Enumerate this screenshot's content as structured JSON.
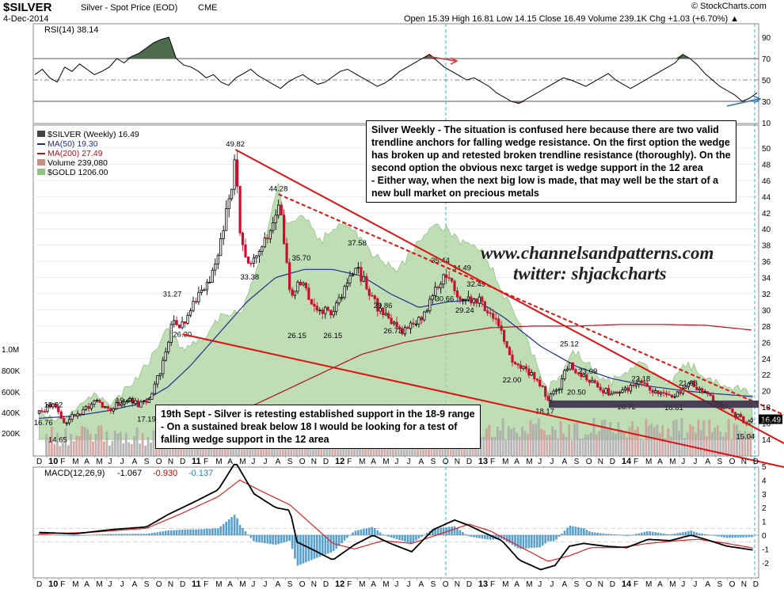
{
  "header": {
    "symbol": "$SILVER",
    "name": "Silver - Spot Price (EOD)",
    "exchange": "CME",
    "date": "4-Dec-2014",
    "credit": "© StockCharts.com",
    "ohlc": "Open 15.39  High 16.81  Low 14.15  Close 16.49  Volume 239.1K  Chg +1.03 (+6.70%) ▲"
  },
  "rsi_panel": {
    "label": "RSI(14) 38.14",
    "levels": [
      "90",
      "70",
      "50",
      "30",
      "10"
    ],
    "values": [
      55,
      60,
      52,
      48,
      62,
      58,
      65,
      60,
      55,
      58,
      62,
      70,
      66,
      72,
      75,
      80,
      85,
      88,
      90,
      70,
      64,
      62,
      58,
      52,
      55,
      48,
      45,
      52,
      56,
      60,
      54,
      50,
      46,
      42,
      48,
      52,
      55,
      50,
      46,
      48,
      53,
      58,
      60,
      56,
      52,
      48,
      44,
      47,
      52,
      58,
      62,
      66,
      70,
      74,
      68,
      62,
      58,
      54,
      50,
      52,
      48,
      44,
      38,
      34,
      30,
      28,
      32,
      36,
      40,
      44,
      48,
      52,
      50,
      47,
      44,
      48,
      52,
      56,
      50,
      46,
      42,
      46,
      50,
      54,
      58,
      62,
      66,
      74,
      70,
      64,
      56,
      50,
      44,
      40,
      36,
      30,
      33,
      38
    ]
  },
  "price_panel": {
    "legend": [
      "$SILVER (Weekly) 16.49",
      "MA(50) 19.30",
      "MA(200) 27.49",
      "Volume 239,080",
      "$GOLD 1206.00"
    ],
    "y_ticks": [
      "50",
      "48",
      "46",
      "44",
      "42",
      "40",
      "38",
      "36",
      "34",
      "32",
      "30",
      "28",
      "26",
      "24",
      "22",
      "20",
      "18",
      "16",
      "14"
    ],
    "volume_ticks": [
      "1.0M",
      "800K",
      "600K",
      "400K",
      "200K"
    ],
    "last_price": "16.49",
    "price_labels": [
      {
        "text": "18.92",
        "x": 2010.05,
        "y": 18.92
      },
      {
        "text": "16.76",
        "x": 2009.98,
        "y": 16.76
      },
      {
        "text": "14.65",
        "x": 2010.08,
        "y": 14.65
      },
      {
        "text": "19.46",
        "x": 2010.55,
        "y": 19.46
      },
      {
        "text": "17.19",
        "x": 2010.7,
        "y": 17.19
      },
      {
        "text": "31.27",
        "x": 2010.88,
        "y": 31.27
      },
      {
        "text": "26.30",
        "x": 2010.95,
        "y": 26.3
      },
      {
        "text": "49.82",
        "x": 2011.32,
        "y": 49.82
      },
      {
        "text": "33.38",
        "x": 2011.42,
        "y": 33.38
      },
      {
        "text": "44.28",
        "x": 2011.62,
        "y": 44.28
      },
      {
        "text": "35.70",
        "x": 2011.78,
        "y": 35.7
      },
      {
        "text": "26.15",
        "x": 2011.75,
        "y": 26.15
      },
      {
        "text": "26.15",
        "x": 2012.0,
        "y": 26.15
      },
      {
        "text": "37.58",
        "x": 2012.17,
        "y": 37.58
      },
      {
        "text": "29.86",
        "x": 2012.35,
        "y": 29.86
      },
      {
        "text": "26.73",
        "x": 2012.42,
        "y": 26.73
      },
      {
        "text": "35.44",
        "x": 2012.75,
        "y": 35.44
      },
      {
        "text": "34.49",
        "x": 2012.9,
        "y": 34.49
      },
      {
        "text": "30.66",
        "x": 2012.78,
        "y": 30.66
      },
      {
        "text": "32.49",
        "x": 2013.0,
        "y": 32.49
      },
      {
        "text": "29.24",
        "x": 2012.92,
        "y": 29.24
      },
      {
        "text": "22.00",
        "x": 2013.25,
        "y": 22.0
      },
      {
        "text": "25.12",
        "x": 2013.65,
        "y": 25.12
      },
      {
        "text": "23.09",
        "x": 2013.78,
        "y": 23.09
      },
      {
        "text": "20.50",
        "x": 2013.7,
        "y": 20.5
      },
      {
        "text": "18.17",
        "x": 2013.48,
        "y": 18.17
      },
      {
        "text": "22.18",
        "x": 2014.15,
        "y": 22.18
      },
      {
        "text": "18.72",
        "x": 2014.05,
        "y": 18.72
      },
      {
        "text": "21.63",
        "x": 2014.48,
        "y": 21.63
      },
      {
        "text": "18.61",
        "x": 2014.38,
        "y": 18.61
      },
      {
        "text": "15.04",
        "x": 2014.88,
        "y": 15.04
      }
    ]
  },
  "annotations": {
    "weekly_note": [
      "Silver Weekly - The situation is confused here because there are two valid",
      "trendline anchors for falling wedge resistance. On the first option the wedge",
      "has broken up and retested broken trendline resistance (thoroughly). On the",
      "second option the obvious nexc target is wedge support in the 12 area",
      "- Either way, when the next big low is made, that may well be the start of a",
      "new bull market on precious metals"
    ],
    "support_note": [
      "19th Sept - Silver is retesting established support in the 18-9 range",
      "- On a sustained break below 18 I would be looking for a test of",
      "falling wedge support in the 12 area"
    ],
    "watermark_site": "www.channelsandpatterns.com",
    "watermark_twitter": "twitter: shjackcharts"
  },
  "x_axis": {
    "labels": [
      "D",
      "10",
      "F",
      "M",
      "A",
      "M",
      "J",
      "J",
      "A",
      "S",
      "O",
      "N",
      "D",
      "11",
      "F",
      "M",
      "A",
      "M",
      "J",
      "J",
      "A",
      "S",
      "O",
      "N",
      "D",
      "12",
      "F",
      "M",
      "A",
      "M",
      "J",
      "J",
      "A",
      "S",
      "O",
      "N",
      "D",
      "13",
      "F",
      "M",
      "A",
      "M",
      "J",
      "J",
      "A",
      "S",
      "O",
      "N",
      "D",
      "14",
      "F",
      "M",
      "A",
      "M",
      "J",
      "J",
      "A",
      "S",
      "O",
      "N",
      "D"
    ]
  },
  "macd_panel": {
    "label_prefix": "MACD(12,26,9)",
    "macd_value": "-1.067",
    "signal_value": "-0.930",
    "hist_value": "-0.137",
    "y_ticks": [
      "5",
      "4",
      "3",
      "2",
      "1",
      "0",
      "-1",
      "-2"
    ]
  },
  "chart_data": {
    "type": "line",
    "title": "$SILVER Silver - Spot Price (EOD) CME",
    "xlabel": "",
    "ylabel": "",
    "x_range": [
      "Dec 2009",
      "Dec 2014"
    ],
    "ylim": [
      14,
      50
    ],
    "price_anchors": [
      [
        2009.95,
        17.2
      ],
      [
        2010.05,
        18.5
      ],
      [
        2010.12,
        16.0
      ],
      [
        2010.2,
        17.0
      ],
      [
        2010.35,
        18.6
      ],
      [
        2010.45,
        17.8
      ],
      [
        2010.55,
        19.0
      ],
      [
        2010.65,
        18.2
      ],
      [
        2010.72,
        19.2
      ],
      [
        2010.8,
        22.5
      ],
      [
        2010.88,
        28.5
      ],
      [
        2010.95,
        28.0
      ],
      [
        2011.02,
        30.5
      ],
      [
        2011.12,
        33.0
      ],
      [
        2011.2,
        36.5
      ],
      [
        2011.28,
        44.0
      ],
      [
        2011.32,
        48.5
      ],
      [
        2011.36,
        38.0
      ],
      [
        2011.42,
        35.0
      ],
      [
        2011.5,
        37.5
      ],
      [
        2011.58,
        40.0
      ],
      [
        2011.63,
        43.0
      ],
      [
        2011.7,
        32.0
      ],
      [
        2011.78,
        33.5
      ],
      [
        2011.85,
        31.0
      ],
      [
        2011.92,
        30.0
      ],
      [
        2012.0,
        29.5
      ],
      [
        2012.1,
        33.0
      ],
      [
        2012.17,
        35.0
      ],
      [
        2012.25,
        32.5
      ],
      [
        2012.32,
        30.0
      ],
      [
        2012.4,
        28.5
      ],
      [
        2012.48,
        27.5
      ],
      [
        2012.56,
        28.0
      ],
      [
        2012.65,
        30.0
      ],
      [
        2012.72,
        33.0
      ],
      [
        2012.78,
        34.5
      ],
      [
        2012.85,
        32.5
      ],
      [
        2012.92,
        31.0
      ],
      [
        2013.0,
        31.5
      ],
      [
        2013.08,
        30.0
      ],
      [
        2013.15,
        28.5
      ],
      [
        2013.25,
        23.5
      ],
      [
        2013.32,
        23.0
      ],
      [
        2013.42,
        21.5
      ],
      [
        2013.5,
        19.0
      ],
      [
        2013.58,
        20.5
      ],
      [
        2013.65,
        23.5
      ],
      [
        2013.72,
        22.0
      ],
      [
        2013.8,
        21.0
      ],
      [
        2013.88,
        20.0
      ],
      [
        2013.95,
        19.8
      ],
      [
        2014.05,
        20.2
      ],
      [
        2014.15,
        21.0
      ],
      [
        2014.22,
        20.0
      ],
      [
        2014.3,
        19.4
      ],
      [
        2014.38,
        19.2
      ],
      [
        2014.45,
        20.5
      ],
      [
        2014.5,
        20.8
      ],
      [
        2014.6,
        19.5
      ],
      [
        2014.7,
        18.2
      ],
      [
        2014.8,
        17.2
      ],
      [
        2014.88,
        16.0
      ],
      [
        2014.93,
        16.5
      ]
    ],
    "gold_anchors": [
      [
        2009.95,
        17.5
      ],
      [
        2010.1,
        16.5
      ],
      [
        2010.3,
        19.5
      ],
      [
        2010.45,
        18.5
      ],
      [
        2010.6,
        21.0
      ],
      [
        2010.75,
        24.5
      ],
      [
        2010.85,
        27.5
      ],
      [
        2010.95,
        25.0
      ],
      [
        2011.1,
        26.5
      ],
      [
        2011.25,
        30.0
      ],
      [
        2011.35,
        29.0
      ],
      [
        2011.45,
        34.0
      ],
      [
        2011.55,
        40.0
      ],
      [
        2011.62,
        45.5
      ],
      [
        2011.68,
        40.0
      ],
      [
        2011.78,
        42.0
      ],
      [
        2011.92,
        38.5
      ],
      [
        2012.05,
        41.0
      ],
      [
        2012.15,
        39.5
      ],
      [
        2012.3,
        36.5
      ],
      [
        2012.45,
        35.0
      ],
      [
        2012.55,
        37.0
      ],
      [
        2012.68,
        40.5
      ],
      [
        2012.78,
        40.0
      ],
      [
        2012.88,
        38.5
      ],
      [
        2013.0,
        38.0
      ],
      [
        2013.1,
        35.5
      ],
      [
        2013.22,
        31.0
      ],
      [
        2013.3,
        28.5
      ],
      [
        2013.42,
        23.5
      ],
      [
        2013.5,
        20.0
      ],
      [
        2013.6,
        22.5
      ],
      [
        2013.68,
        25.0
      ],
      [
        2013.78,
        23.5
      ],
      [
        2013.9,
        21.0
      ],
      [
        2014.0,
        21.5
      ],
      [
        2014.12,
        23.5
      ],
      [
        2014.22,
        22.5
      ],
      [
        2014.35,
        21.0
      ],
      [
        2014.45,
        23.5
      ],
      [
        2014.55,
        22.5
      ],
      [
        2014.65,
        21.5
      ],
      [
        2014.75,
        20.5
      ],
      [
        2014.85,
        20.0
      ],
      [
        2014.93,
        19.5
      ]
    ],
    "ma50_anchors": [
      [
        2009.95,
        16.6
      ],
      [
        2010.2,
        16.9
      ],
      [
        2010.45,
        17.6
      ],
      [
        2010.65,
        18.4
      ],
      [
        2010.85,
        20.5
      ],
      [
        2011.0,
        23.0
      ],
      [
        2011.2,
        27.0
      ],
      [
        2011.4,
        31.0
      ],
      [
        2011.6,
        34.0
      ],
      [
        2011.8,
        35.0
      ],
      [
        2012.0,
        35.0
      ],
      [
        2012.2,
        34.2
      ],
      [
        2012.4,
        32.0
      ],
      [
        2012.6,
        30.3
      ],
      [
        2012.8,
        31.0
      ],
      [
        2013.0,
        31.2
      ],
      [
        2013.2,
        29.0
      ],
      [
        2013.45,
        25.5
      ],
      [
        2013.7,
        23.0
      ],
      [
        2013.95,
        21.5
      ],
      [
        2014.2,
        20.6
      ],
      [
        2014.45,
        20.0
      ],
      [
        2014.7,
        19.6
      ],
      [
        2014.93,
        19.3
      ]
    ],
    "ma200_anchors": [
      [
        2010.8,
        14.2
      ],
      [
        2011.0,
        15.0
      ],
      [
        2011.3,
        17.0
      ],
      [
        2011.6,
        19.5
      ],
      [
        2011.9,
        22.0
      ],
      [
        2012.2,
        24.5
      ],
      [
        2012.5,
        26.0
      ],
      [
        2012.8,
        27.0
      ],
      [
        2013.1,
        27.8
      ],
      [
        2013.4,
        28.0
      ],
      [
        2013.7,
        28.0
      ],
      [
        2014.0,
        28.2
      ],
      [
        2014.3,
        28.2
      ],
      [
        2014.6,
        28.1
      ],
      [
        2014.93,
        27.5
      ]
    ],
    "series": [
      {
        "name": "$SILVER (Weekly)",
        "last": 16.49
      },
      {
        "name": "MA(50)",
        "last": 19.3
      },
      {
        "name": "MA(200)",
        "last": 27.49
      },
      {
        "name": "$GOLD",
        "last": 1206.0
      }
    ],
    "trendlines": {
      "wedge_resistance_1": [
        [
          2011.32,
          49.8
        ],
        [
          2014.93,
          18.8
        ]
      ],
      "wedge_resistance_2": [
        [
          2011.62,
          44.3
        ],
        [
          2014.93,
          16.8
        ]
      ],
      "wedge_support": [
        [
          2010.95,
          27.0
        ],
        [
          2014.93,
          12.0
        ]
      ],
      "support_zone": [
        17.9,
        18.8
      ]
    },
    "macd": {
      "macd_anchors": [
        [
          2009.95,
          0.2
        ],
        [
          2010.2,
          0.1
        ],
        [
          2010.45,
          0.4
        ],
        [
          2010.7,
          0.6
        ],
        [
          2010.85,
          1.5
        ],
        [
          2011.05,
          2.5
        ],
        [
          2011.2,
          3.3
        ],
        [
          2011.32,
          5.3
        ],
        [
          2011.45,
          3.0
        ],
        [
          2011.6,
          2.0
        ],
        [
          2011.7,
          1.8
        ],
        [
          2011.75,
          -0.5
        ],
        [
          2011.85,
          -1.0
        ],
        [
          2012.0,
          -1.8
        ],
        [
          2012.15,
          -0.7
        ],
        [
          2012.28,
          0.0
        ],
        [
          2012.4,
          -0.6
        ],
        [
          2012.55,
          -1.2
        ],
        [
          2012.7,
          0.4
        ],
        [
          2012.85,
          1.1
        ],
        [
          2012.95,
          0.7
        ],
        [
          2013.05,
          0.2
        ],
        [
          2013.18,
          -0.4
        ],
        [
          2013.3,
          -1.8
        ],
        [
          2013.45,
          -2.5
        ],
        [
          2013.55,
          -2.2
        ],
        [
          2013.65,
          -0.8
        ],
        [
          2013.75,
          -0.6
        ],
        [
          2013.9,
          -0.8
        ],
        [
          2014.05,
          -0.9
        ],
        [
          2014.2,
          -0.3
        ],
        [
          2014.35,
          -0.4
        ],
        [
          2014.5,
          0.0
        ],
        [
          2014.6,
          -0.3
        ],
        [
          2014.75,
          -0.8
        ],
        [
          2014.93,
          -1.07
        ]
      ],
      "signal_anchors": [
        [
          2009.95,
          0.1
        ],
        [
          2010.3,
          0.2
        ],
        [
          2010.7,
          0.5
        ],
        [
          2010.95,
          1.6
        ],
        [
          2011.2,
          2.8
        ],
        [
          2011.35,
          4.0
        ],
        [
          2011.5,
          3.2
        ],
        [
          2011.7,
          2.2
        ],
        [
          2011.85,
          0.8
        ],
        [
          2012.0,
          -0.6
        ],
        [
          2012.15,
          -1.0
        ],
        [
          2012.35,
          -0.4
        ],
        [
          2012.55,
          -0.6
        ],
        [
          2012.75,
          0.1
        ],
        [
          2012.95,
          0.8
        ],
        [
          2013.1,
          0.3
        ],
        [
          2013.3,
          -0.8
        ],
        [
          2013.5,
          -1.9
        ],
        [
          2013.65,
          -1.5
        ],
        [
          2013.8,
          -0.9
        ],
        [
          2014.0,
          -0.9
        ],
        [
          2014.2,
          -0.6
        ],
        [
          2014.4,
          -0.4
        ],
        [
          2014.55,
          -0.3
        ],
        [
          2014.75,
          -0.6
        ],
        [
          2014.93,
          -0.93
        ]
      ],
      "ylim": [
        -2.6,
        5.7
      ]
    }
  }
}
